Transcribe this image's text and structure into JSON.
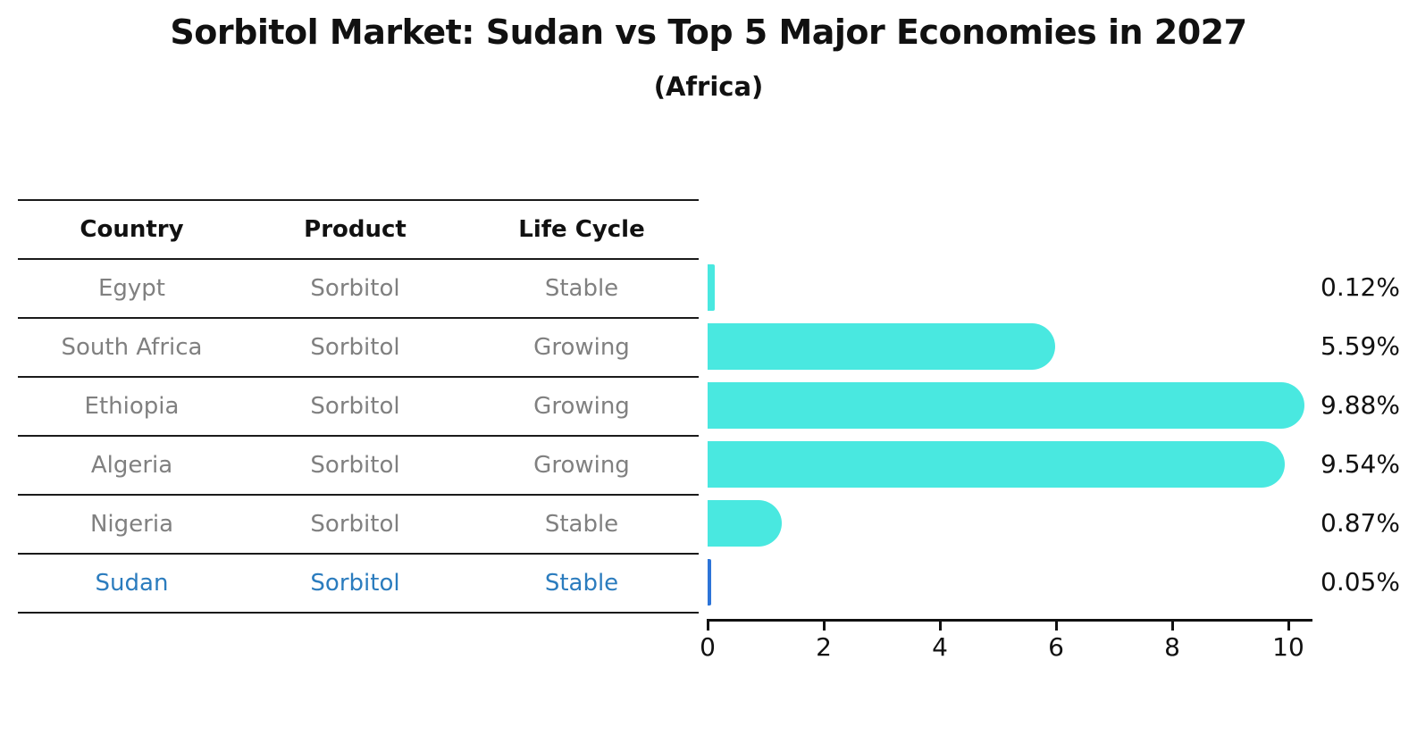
{
  "title": "Sorbitol Market: Sudan vs Top 5 Major Economies in 2027",
  "subtitle": "(Africa)",
  "table": {
    "headers": [
      "Country",
      "Product",
      "Life Cycle"
    ],
    "rows": [
      {
        "country": "Egypt",
        "product": "Sorbitol",
        "life_cycle": "Stable",
        "highlight": false
      },
      {
        "country": "South Africa",
        "product": "Sorbitol",
        "life_cycle": "Growing",
        "highlight": false
      },
      {
        "country": "Ethiopia",
        "product": "Sorbitol",
        "life_cycle": "Growing",
        "highlight": false
      },
      {
        "country": "Algeria",
        "product": "Sorbitol",
        "life_cycle": "Growing",
        "highlight": false
      },
      {
        "country": "Nigeria",
        "product": "Sorbitol",
        "life_cycle": "Stable",
        "highlight": false
      },
      {
        "country": "Sudan",
        "product": "Sorbitol",
        "life_cycle": "Stable",
        "highlight": true
      }
    ]
  },
  "chart_data": {
    "type": "bar",
    "orientation": "horizontal",
    "title": "Sorbitol Market: Sudan vs Top 5 Major Economies in 2027",
    "subtitle": "(Africa)",
    "categories": [
      "Egypt",
      "South Africa",
      "Ethiopia",
      "Algeria",
      "Nigeria",
      "Sudan"
    ],
    "values": [
      0.12,
      5.59,
      9.88,
      9.54,
      0.87,
      0.05
    ],
    "value_labels": [
      "0.12%",
      "5.59%",
      "9.88%",
      "9.54%",
      "0.87%",
      "0.05%"
    ],
    "xlabel": "",
    "ylabel": "",
    "x_ticks": [
      0,
      2,
      4,
      6,
      8,
      10
    ],
    "xlim": [
      0,
      10.5
    ],
    "grid": false,
    "legend": "none",
    "bar_color": "#49E8E0",
    "highlight_bar_color": "#2D74D8",
    "highlight_index": 5,
    "highlight_text_color": "#2B7CBE",
    "label_color": "#111111",
    "table_text_color": "#808080"
  }
}
